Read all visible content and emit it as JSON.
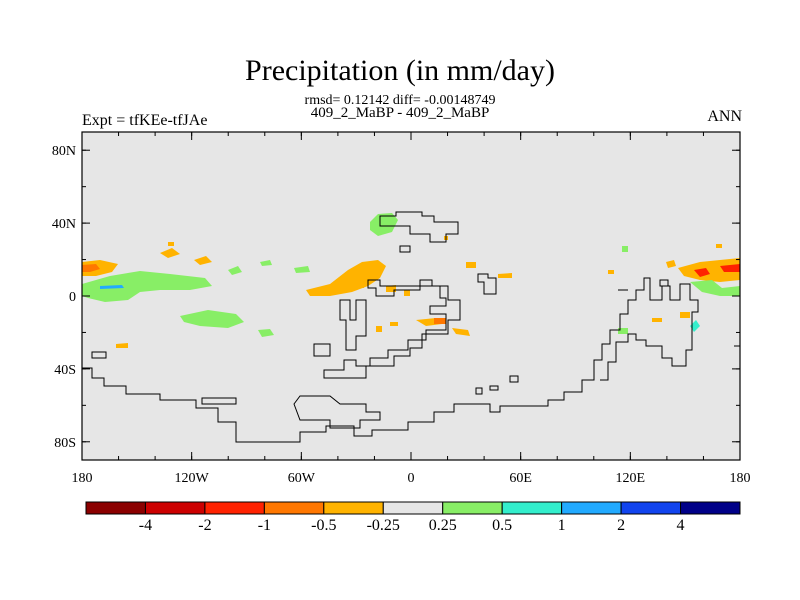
{
  "title": "Precipitation (in mm/day)",
  "stats": "rmsd= 0.12142 diff= -0.00148749",
  "subtitle": "409_2_MaBP - 409_2_MaBP",
  "expt_label": "Expt = tfKEe-tfJAe",
  "season_label": "ANN",
  "axes": {
    "x_ticks": [
      "180",
      "120W",
      "60W",
      "0",
      "60E",
      "120E",
      "180"
    ],
    "y_ticks": [
      "80N",
      "40N",
      "0",
      "40S",
      "80S"
    ],
    "lon_range": [
      -180,
      180
    ],
    "lat_range": [
      -90,
      90
    ]
  },
  "colorbar": {
    "labels": [
      "-4",
      "-2",
      "-1",
      "-0.5",
      "-0.25",
      "0.25",
      "0.5",
      "1",
      "2",
      "4"
    ],
    "colors": [
      "#8b0000",
      "#cc0000",
      "#ff2200",
      "#ff7700",
      "#ffb300",
      "#e6e6e6",
      "#88ee66",
      "#33eecc",
      "#22aaff",
      "#1144ee",
      "#000088"
    ]
  },
  "map_colors": {
    "background": "#e6e6e6",
    "coastline": "#000000"
  }
}
